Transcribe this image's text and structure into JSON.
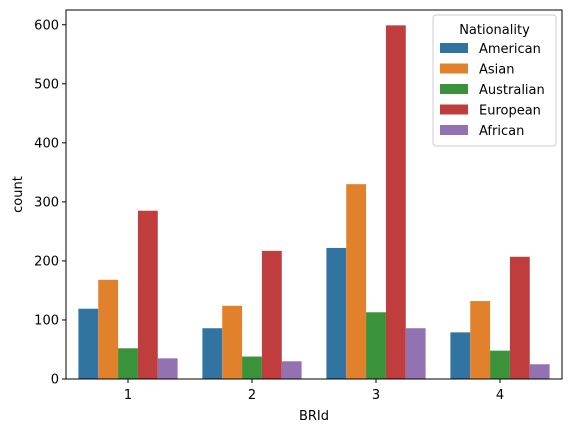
{
  "chart_data": {
    "type": "bar",
    "title": "",
    "xlabel": "BRId",
    "ylabel": "count",
    "categories": [
      "1",
      "2",
      "3",
      "4"
    ],
    "ylim": [
      0,
      625
    ],
    "yticks": [
      0,
      100,
      200,
      300,
      400,
      500,
      600
    ],
    "grid": false,
    "legend": {
      "title": "Nationality",
      "placement": "top-right"
    },
    "series": [
      {
        "name": "American",
        "color": "#3274a1",
        "values": [
          119,
          86,
          222,
          79
        ]
      },
      {
        "name": "Asian",
        "color": "#e1812c",
        "values": [
          168,
          124,
          330,
          132
        ]
      },
      {
        "name": "Australian",
        "color": "#3a923a",
        "values": [
          52,
          38,
          113,
          48
        ]
      },
      {
        "name": "European",
        "color": "#c03d3e",
        "values": [
          285,
          217,
          599,
          207
        ]
      },
      {
        "name": "African",
        "color": "#9372b2",
        "values": [
          35,
          30,
          86,
          25
        ]
      }
    ]
  }
}
